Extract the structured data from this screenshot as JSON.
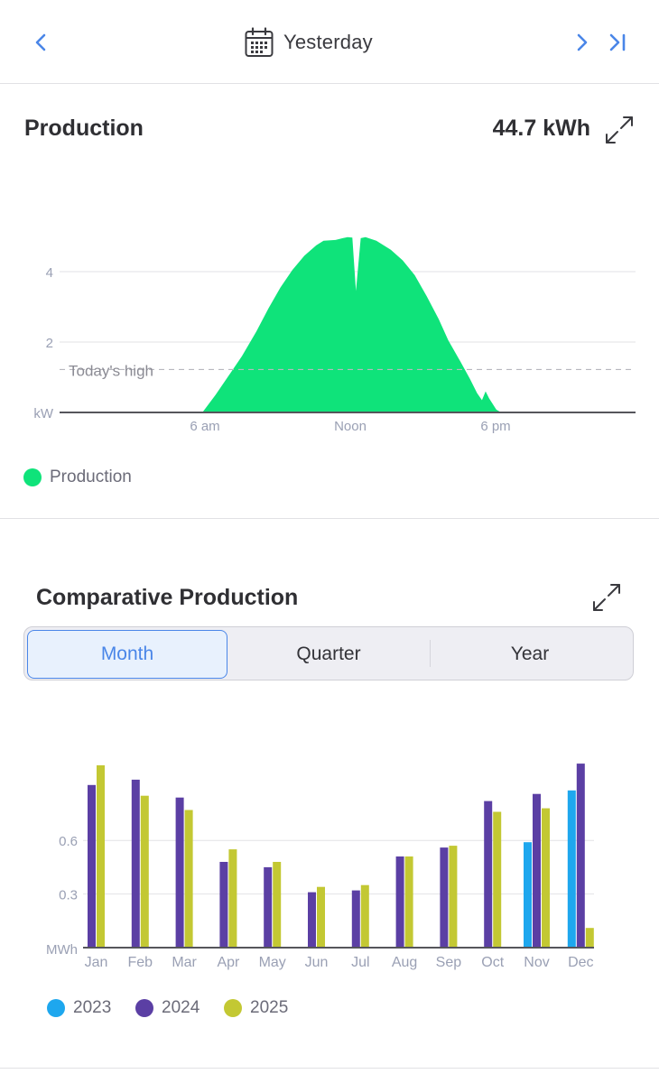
{
  "header": {
    "date_label": "Yesterday",
    "icons": {
      "prev": "chevron-left-icon",
      "calendar": "calendar-icon",
      "next": "chevron-right-icon",
      "last": "skip-to-end-icon"
    }
  },
  "production": {
    "title": "Production",
    "total": "44.7 kWh",
    "legend_label": "Production",
    "today_high_label": "Today's high",
    "chart_data": {
      "type": "area",
      "title": "Production",
      "y_unit": "kW",
      "x_tick_labels": [
        "6 am",
        "Noon",
        "6 pm"
      ],
      "y_tick_labels": [
        "2",
        "4"
      ],
      "ylim": [
        0,
        5
      ],
      "xlim_hours": [
        0,
        24
      ],
      "today_high_kw": 1.22,
      "color": "#0fe37a",
      "points_hours_kw": [
        [
          5.95,
          0
        ],
        [
          6.5,
          0.5
        ],
        [
          7.0,
          1.0
        ],
        [
          7.6,
          1.6
        ],
        [
          8.2,
          2.3
        ],
        [
          8.7,
          2.95
        ],
        [
          9.2,
          3.55
        ],
        [
          9.7,
          4.05
        ],
        [
          10.2,
          4.45
        ],
        [
          10.7,
          4.75
        ],
        [
          11.0,
          4.88
        ],
        [
          11.5,
          4.9
        ],
        [
          11.8,
          4.95
        ],
        [
          12.0,
          4.98
        ],
        [
          12.2,
          4.97
        ],
        [
          12.35,
          3.45
        ],
        [
          12.55,
          4.95
        ],
        [
          12.75,
          4.98
        ],
        [
          13.2,
          4.88
        ],
        [
          13.8,
          4.62
        ],
        [
          14.3,
          4.32
        ],
        [
          14.8,
          3.9
        ],
        [
          15.3,
          3.3
        ],
        [
          15.8,
          2.65
        ],
        [
          16.2,
          2.05
        ],
        [
          16.7,
          1.45
        ],
        [
          17.1,
          0.95
        ],
        [
          17.4,
          0.55
        ],
        [
          17.6,
          0.35
        ],
        [
          17.75,
          0.6
        ],
        [
          17.9,
          0.4
        ],
        [
          18.2,
          0.08
        ],
        [
          18.4,
          0
        ]
      ]
    }
  },
  "comparative": {
    "title": "Comparative Production",
    "tabs": [
      {
        "label": "Month",
        "active": true
      },
      {
        "label": "Quarter",
        "active": false
      },
      {
        "label": "Year",
        "active": false
      }
    ],
    "chart_data": {
      "type": "bar",
      "y_unit": "MWh",
      "y_tick_labels": [
        "0.3",
        "0.6"
      ],
      "ylim": [
        0,
        1.03
      ],
      "categories": [
        "Jan",
        "Feb",
        "Mar",
        "Apr",
        "May",
        "Jun",
        "Jul",
        "Aug",
        "Sep",
        "Oct",
        "Nov",
        "Dec"
      ],
      "series": [
        {
          "name": "2023",
          "color": "#1ea7ee",
          "values": [
            null,
            null,
            null,
            null,
            null,
            null,
            null,
            null,
            null,
            null,
            0.59,
            0.88
          ]
        },
        {
          "name": "2024",
          "color": "#5b3fa4",
          "values": [
            0.91,
            0.94,
            0.84,
            0.48,
            0.45,
            0.31,
            0.32,
            0.51,
            0.56,
            0.82,
            0.86,
            1.03
          ]
        },
        {
          "name": "2025",
          "color": "#c3c833",
          "values": [
            1.02,
            0.85,
            0.77,
            0.55,
            0.48,
            0.34,
            0.35,
            0.51,
            0.57,
            0.76,
            0.78,
            0.11
          ]
        }
      ]
    }
  }
}
